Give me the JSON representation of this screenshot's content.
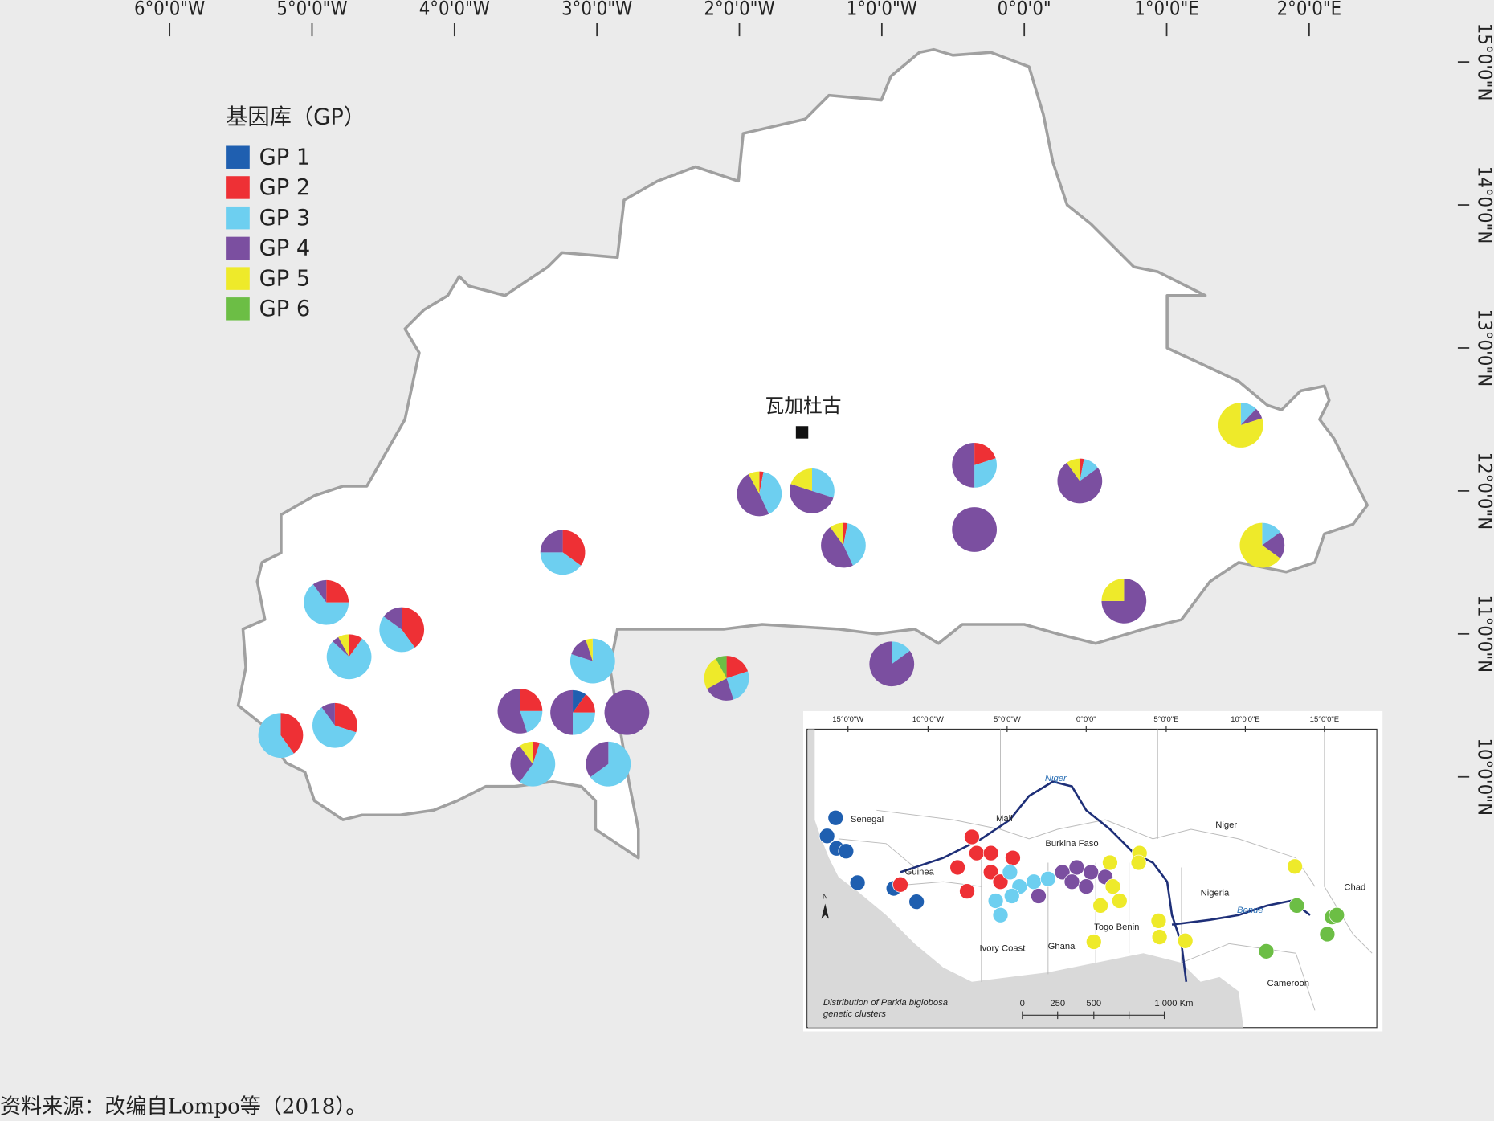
{
  "map": {
    "xticks": [
      {
        "value": -6,
        "label": "6°0'0\"W"
      },
      {
        "value": -5,
        "label": "5°0'0\"W"
      },
      {
        "value": -4,
        "label": "4°0'0\"W"
      },
      {
        "value": -3,
        "label": "3°0'0\"W"
      },
      {
        "value": -2,
        "label": "2°0'0\"W"
      },
      {
        "value": -1,
        "label": "1°0'0\"W"
      },
      {
        "value": 0,
        "label": "0°0'0\""
      },
      {
        "value": 1,
        "label": "1°0'0\"E"
      },
      {
        "value": 2,
        "label": "2°0'0\"E"
      }
    ],
    "yticks": [
      {
        "value": 15,
        "label": "15°0'0\"N"
      },
      {
        "value": 14,
        "label": "14°0'0\"N"
      },
      {
        "value": 13,
        "label": "13°0'0\"N"
      },
      {
        "value": 12,
        "label": "12°0'0\"N"
      },
      {
        "value": 11,
        "label": "11°0'0\"N"
      },
      {
        "value": 10,
        "label": "10°0'0\"N"
      }
    ],
    "legend_title": "基因库（GP）",
    "series": [
      {
        "name": "GP 1",
        "color": "#1f5fb0"
      },
      {
        "name": "GP 2",
        "color": "#ee3035"
      },
      {
        "name": "GP 3",
        "color": "#6dcff0"
      },
      {
        "name": "GP 4",
        "color": "#7b4fa0"
      },
      {
        "name": "GP 5",
        "color": "#eeea2a"
      },
      {
        "name": "GP 6",
        "color": "#6cbe45"
      }
    ],
    "city": {
      "name": "瓦加杜古",
      "lon": -1.56,
      "lat": 12.41
    },
    "pies": [
      {
        "lon": 1.52,
        "lat": 12.46,
        "shares": [
          0,
          0,
          12,
          8,
          80,
          0
        ]
      },
      {
        "lon": -0.35,
        "lat": 12.18,
        "shares": [
          0,
          20,
          30,
          50,
          0,
          0
        ]
      },
      {
        "lon": 0.39,
        "lat": 12.07,
        "shares": [
          0,
          3,
          12,
          75,
          10,
          0
        ]
      },
      {
        "lon": -1.86,
        "lat": 11.98,
        "shares": [
          0,
          3,
          40,
          49,
          8,
          0
        ]
      },
      {
        "lon": -1.49,
        "lat": 12.0,
        "shares": [
          0,
          0,
          30,
          50,
          20,
          0
        ]
      },
      {
        "lon": -0.35,
        "lat": 11.73,
        "shares": [
          0,
          0,
          0,
          100,
          0,
          0
        ]
      },
      {
        "lon": -1.27,
        "lat": 11.62,
        "shares": [
          0,
          3,
          40,
          47,
          10,
          0
        ]
      },
      {
        "lon": 1.67,
        "lat": 11.62,
        "shares": [
          0,
          0,
          15,
          20,
          65,
          0
        ]
      },
      {
        "lon": -3.24,
        "lat": 11.57,
        "shares": [
          0,
          35,
          40,
          25,
          0,
          0
        ]
      },
      {
        "lon": 0.7,
        "lat": 11.23,
        "shares": [
          0,
          0,
          0,
          75,
          25,
          0
        ]
      },
      {
        "lon": -3.03,
        "lat": 10.81,
        "shares": [
          0,
          0,
          80,
          15,
          5,
          0
        ]
      },
      {
        "lon": -0.93,
        "lat": 10.79,
        "shares": [
          0,
          0,
          15,
          85,
          0,
          0
        ]
      },
      {
        "lon": -2.09,
        "lat": 10.69,
        "shares": [
          0,
          20,
          25,
          22,
          25,
          8
        ]
      },
      {
        "lon": -4.9,
        "lat": 11.22,
        "shares": [
          0,
          25,
          65,
          10,
          0,
          0
        ]
      },
      {
        "lon": -4.37,
        "lat": 11.03,
        "shares": [
          0,
          40,
          45,
          15,
          0,
          0
        ]
      },
      {
        "lon": -4.74,
        "lat": 10.84,
        "shares": [
          0,
          10,
          77,
          5,
          8,
          0
        ]
      },
      {
        "lon": -5.22,
        "lat": 10.29,
        "shares": [
          0,
          40,
          60,
          0,
          0,
          0
        ]
      },
      {
        "lon": -4.84,
        "lat": 10.36,
        "shares": [
          0,
          30,
          60,
          10,
          0,
          0
        ]
      },
      {
        "lon": -3.54,
        "lat": 10.46,
        "shares": [
          0,
          25,
          20,
          55,
          0,
          0
        ]
      },
      {
        "lon": -3.17,
        "lat": 10.45,
        "shares": [
          10,
          15,
          25,
          50,
          0,
          0
        ]
      },
      {
        "lon": -2.79,
        "lat": 10.45,
        "shares": [
          0,
          0,
          0,
          100,
          0,
          0
        ]
      },
      {
        "lon": -3.45,
        "lat": 10.09,
        "shares": [
          0,
          5,
          55,
          30,
          10,
          0
        ]
      },
      {
        "lon": -2.92,
        "lat": 10.09,
        "shares": [
          0,
          0,
          65,
          35,
          0,
          0
        ]
      }
    ],
    "inset": {
      "ticks": [
        "15°0'0\"W",
        "10°0'0\"W",
        "5°0'0\"W",
        "0°0'0\"",
        "5°0'0\"E",
        "10°0'0\"E",
        "15°0'0\"E"
      ],
      "countries": [
        "Senegal",
        "Mali",
        "Niger",
        "Burkina Faso",
        "Guinea",
        "Nigeria",
        "Chad",
        "Togo Benin",
        "Ivory Coast",
        "Ghana",
        "Cameroon"
      ],
      "rivers": [
        "Niger",
        "Benue"
      ],
      "north": "N",
      "caption": [
        "Distribution of Parkia biglobosa",
        "genetic clusters"
      ],
      "scale": [
        "0",
        "250",
        "500",
        "1 000 Km"
      ]
    },
    "source": "资料来源：改编自Lompo等（2018）。"
  }
}
